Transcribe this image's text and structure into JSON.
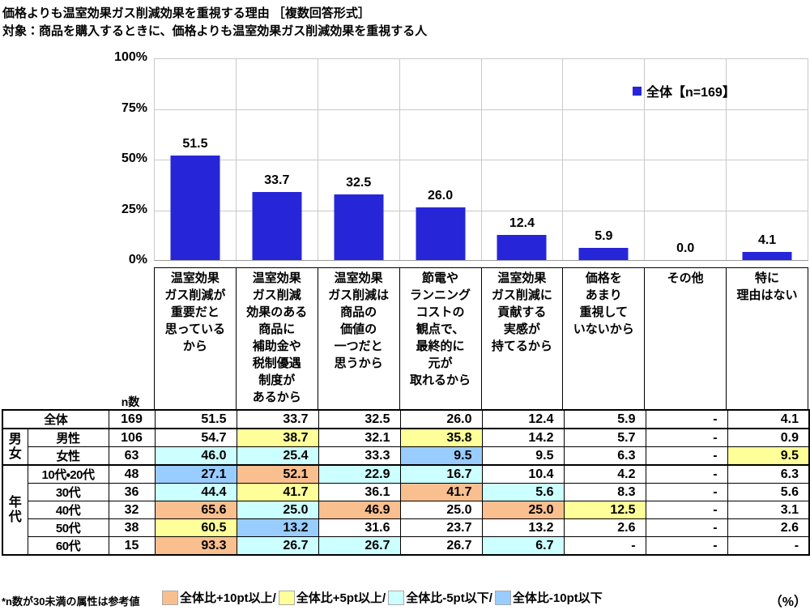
{
  "title": "価格よりも温室効果ガス削減効果を重視する理由 ［複数回答形式］",
  "subtitle": "対象：商品を購入するときに、価格よりも温室効果ガス削減効果を重視する人",
  "labels": {
    "n_label": "n数",
    "footnote": "*n数が30未満の属性は参考値",
    "unit": "（%）"
  },
  "colors": {
    "bar": "#2626d8",
    "grid": "#c9c9c9",
    "orange": "#FABF8F",
    "yellow": "#FFFF99",
    "cyan": "#CCFFFF",
    "blue": "#99CCFF"
  },
  "chart_data": {
    "type": "bar",
    "title": "価格よりも温室効果ガス削減効果を重視する理由 ［複数回答形式］",
    "legend": "全体【n=169】",
    "legend_position": "top-right",
    "grid": true,
    "ylim": [
      0,
      100
    ],
    "yticks": [
      "100%",
      "75%",
      "50%",
      "25%",
      "0%"
    ],
    "bar_color": "#2626d8",
    "categories": [
      "温室効果\nガス削減が\n重要だと\n思っている\nから",
      "温室効果\nガス削減\n効果のある\n商品に\n補助金や\n税制優遇\n制度が\nあるから",
      "温室効果\nガス削減は\n商品の\n価値の\n一つだと\n思うから",
      "節電や\nランニング\nコストの\n観点で、\n最終的に\n元が\n取れるから",
      "温室効果\nガス削減に\n貢献する\n実感が\n持てるから",
      "価格を\nあまり\n重視して\nいないから",
      "その他",
      "特に\n理由はない"
    ],
    "values": [
      51.5,
      33.7,
      32.5,
      26.0,
      12.4,
      5.9,
      0.0,
      4.1
    ]
  },
  "table": {
    "rows": [
      {
        "merged": true,
        "label": "全体",
        "n": "169",
        "values": [
          "51.5",
          "33.7",
          "32.5",
          "26.0",
          "12.4",
          "5.9",
          "-",
          "4.1"
        ],
        "highlights": [
          "",
          "",
          "",
          "",
          "",
          "",
          "",
          ""
        ]
      },
      {
        "group": "男女",
        "group_span": 2,
        "label": "男性",
        "n": "106",
        "values": [
          "54.7",
          "38.7",
          "32.1",
          "35.8",
          "14.2",
          "5.7",
          "-",
          "0.9"
        ],
        "highlights": [
          "",
          "yellow",
          "",
          "yellow",
          "",
          "",
          "",
          ""
        ]
      },
      {
        "label": "女性",
        "n": "63",
        "values": [
          "46.0",
          "25.4",
          "33.3",
          "9.5",
          "9.5",
          "6.3",
          "-",
          "9.5"
        ],
        "highlights": [
          "cyan",
          "cyan",
          "",
          "blue",
          "",
          "",
          "",
          "yellow"
        ]
      },
      {
        "group": "年代",
        "group_span": 5,
        "label": "10代・20代",
        "n": "48",
        "values": [
          "27.1",
          "52.1",
          "22.9",
          "16.7",
          "10.4",
          "4.2",
          "-",
          "6.3"
        ],
        "highlights": [
          "blue",
          "orange",
          "cyan",
          "cyan",
          "",
          "",
          "",
          ""
        ]
      },
      {
        "label": "30代",
        "n": "36",
        "values": [
          "44.4",
          "41.7",
          "36.1",
          "41.7",
          "5.6",
          "8.3",
          "-",
          "5.6"
        ],
        "highlights": [
          "cyan",
          "yellow",
          "",
          "orange",
          "cyan",
          "",
          "",
          ""
        ]
      },
      {
        "label": "40代",
        "n": "32",
        "values": [
          "65.6",
          "25.0",
          "46.9",
          "25.0",
          "25.0",
          "12.5",
          "-",
          "3.1"
        ],
        "highlights": [
          "orange",
          "cyan",
          "orange",
          "",
          "orange",
          "yellow",
          "",
          ""
        ]
      },
      {
        "label": "50代",
        "n": "38",
        "values": [
          "60.5",
          "13.2",
          "31.6",
          "23.7",
          "13.2",
          "2.6",
          "-",
          "2.6"
        ],
        "highlights": [
          "yellow",
          "blue",
          "",
          "",
          "",
          "",
          "",
          ""
        ]
      },
      {
        "label": "60代",
        "n": "15",
        "values": [
          "93.3",
          "26.7",
          "26.7",
          "26.7",
          "6.7",
          "-",
          "-",
          "-"
        ],
        "highlights": [
          "orange",
          "cyan",
          "cyan",
          "",
          "cyan",
          "",
          "",
          ""
        ]
      }
    ]
  },
  "footer_legend": [
    {
      "type": "orange",
      "label": "全体比+10pt以上/"
    },
    {
      "type": "yellow",
      "label": "全体比+5pt以上/"
    },
    {
      "type": "cyan",
      "label": "全体比-5pt以下/"
    },
    {
      "type": "blue",
      "label": "全体比-10pt以下"
    }
  ]
}
